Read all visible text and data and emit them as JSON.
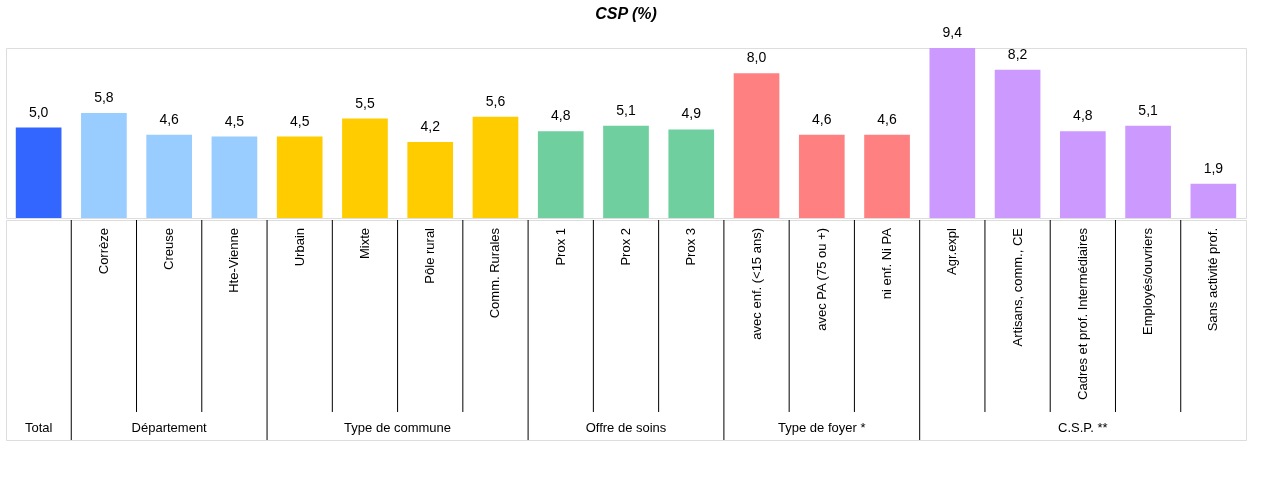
{
  "chart_data": {
    "type": "bar",
    "title": "CSP (%)",
    "categories": [
      null,
      "Corrèze",
      "Creuse",
      "Hte-Vienne",
      "Urbain",
      "Mixte",
      "Pôle rural",
      "Comm. Rurales",
      "Prox 1",
      "Prox 2",
      "Prox 3",
      "avec enf. (<15 ans)",
      "avec PA (75 ou +)",
      "ni enf. Ni PA",
      "Agr.expl",
      "Artisans, comm., CE",
      "Cadres et prof. Intermédiaires",
      "Employés/ouvriers",
      "Sans activité prof."
    ],
    "values": [
      5.0,
      5.8,
      4.6,
      4.5,
      4.5,
      5.5,
      4.2,
      5.6,
      4.8,
      5.1,
      4.9,
      8.0,
      4.6,
      4.6,
      9.4,
      8.2,
      4.8,
      5.1,
      1.9
    ],
    "value_labels": [
      "5,0",
      "5,8",
      "4,6",
      "4,5",
      "4,5",
      "5,5",
      "4,2",
      "5,6",
      "4,8",
      "5,1",
      "4,9",
      "8,0",
      "4,6",
      "4,6",
      "9,4",
      "8,2",
      "4,8",
      "5,1",
      "1,9"
    ],
    "colors": [
      "#3366ff",
      "#99ccff",
      "#99ccff",
      "#99ccff",
      "#ffcc00",
      "#ffcc00",
      "#ffcc00",
      "#ffcc00",
      "#6fcf9f",
      "#6fcf9f",
      "#6fcf9f",
      "#ff8080",
      "#ff8080",
      "#ff8080",
      "#cc99ff",
      "#cc99ff",
      "#cc99ff",
      "#cc99ff",
      "#cc99ff"
    ],
    "annotations": [
      "Total",
      "Département",
      "Type de commune",
      "Offre de soins",
      "Type de foyer *",
      "C.S.P. **"
    ],
    "ylim": [
      0,
      9.4
    ]
  }
}
